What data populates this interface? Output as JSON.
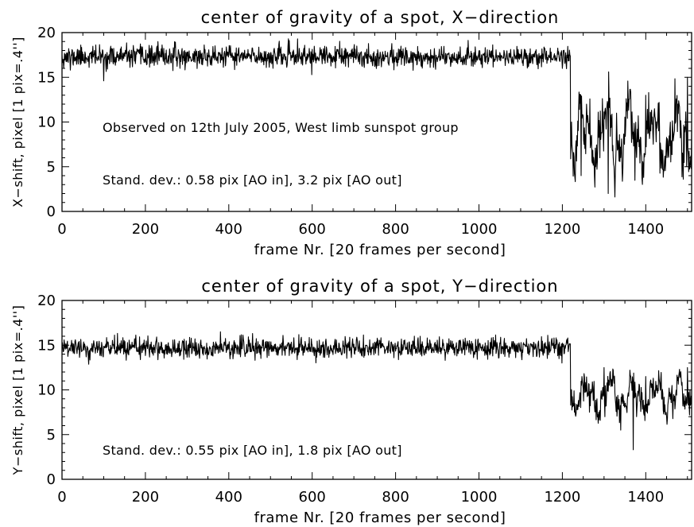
{
  "chart_data": [
    {
      "type": "line",
      "title": "center of gravity of a spot, X−direction",
      "xlabel": "frame Nr. [20 frames per second]",
      "ylabel": "X−shift, pixel [1 pix=.4'']",
      "xlim": [
        0,
        1510
      ],
      "ylim": [
        0,
        20
      ],
      "xticks": [
        0,
        200,
        400,
        600,
        800,
        1000,
        1200,
        1400
      ],
      "yticks": [
        0,
        5,
        10,
        15,
        20
      ],
      "grid": false,
      "annotations": [
        "Observed on 12th July 2005, West limb sunspot group",
        "Stand. dev.: 0.58 pix [AO in], 3.2 pix [AO out]"
      ],
      "series": [
        {
          "segments": [
            {
              "x": [
                0,
                1220
              ],
              "level": 17.3,
              "sd": 0.58
            },
            {
              "x": [
                1220,
                1510
              ],
              "level": 8.5,
              "sd": 3.2
            }
          ],
          "keypoints": [
            {
              "x": 0,
              "y": 17.5
            },
            {
              "x": 20,
              "y": 15.8
            },
            {
              "x": 100,
              "y": 14.6
            },
            {
              "x": 230,
              "y": 19.0
            },
            {
              "x": 565,
              "y": 19.3
            },
            {
              "x": 1215,
              "y": 17.5
            },
            {
              "x": 1222,
              "y": 10.0
            },
            {
              "x": 1245,
              "y": 4.0
            },
            {
              "x": 1258,
              "y": 12.0
            },
            {
              "x": 1290,
              "y": 6.0
            },
            {
              "x": 1310,
              "y": 2.0
            },
            {
              "x": 1330,
              "y": 11.0
            },
            {
              "x": 1345,
              "y": 4.5
            },
            {
              "x": 1400,
              "y": 13.0
            },
            {
              "x": 1500,
              "y": 15.0
            },
            {
              "x": 1510,
              "y": 9.0
            }
          ]
        }
      ]
    },
    {
      "type": "line",
      "title": "center of gravity of a spot, Y−direction",
      "xlabel": "frame Nr. [20 frames per second]",
      "ylabel": "Y−shift, pixel [1 pix=.4'']",
      "xlim": [
        0,
        1510
      ],
      "ylim": [
        0,
        20
      ],
      "xticks": [
        0,
        200,
        400,
        600,
        800,
        1000,
        1200,
        1400
      ],
      "yticks": [
        0,
        5,
        10,
        15,
        20
      ],
      "grid": false,
      "annotations": [
        "Stand. dev.: 0.55 pix [AO in], 1.8 pix [AO out]"
      ],
      "series": [
        {
          "segments": [
            {
              "x": [
                0,
                1220
              ],
              "level": 14.7,
              "sd": 0.55
            },
            {
              "x": [
                1220,
                1510
              ],
              "level": 9.3,
              "sd": 1.8
            }
          ],
          "keypoints": [
            {
              "x": 0,
              "y": 15.0
            },
            {
              "x": 380,
              "y": 16.5
            },
            {
              "x": 1210,
              "y": 15.5
            },
            {
              "x": 1222,
              "y": 10.0
            },
            {
              "x": 1265,
              "y": 7.5
            },
            {
              "x": 1300,
              "y": 12.5
            },
            {
              "x": 1340,
              "y": 5.5
            },
            {
              "x": 1370,
              "y": 3.3
            },
            {
              "x": 1400,
              "y": 11.5
            },
            {
              "x": 1450,
              "y": 7.0
            },
            {
              "x": 1500,
              "y": 12.5
            },
            {
              "x": 1510,
              "y": 8.5
            }
          ]
        }
      ]
    }
  ]
}
